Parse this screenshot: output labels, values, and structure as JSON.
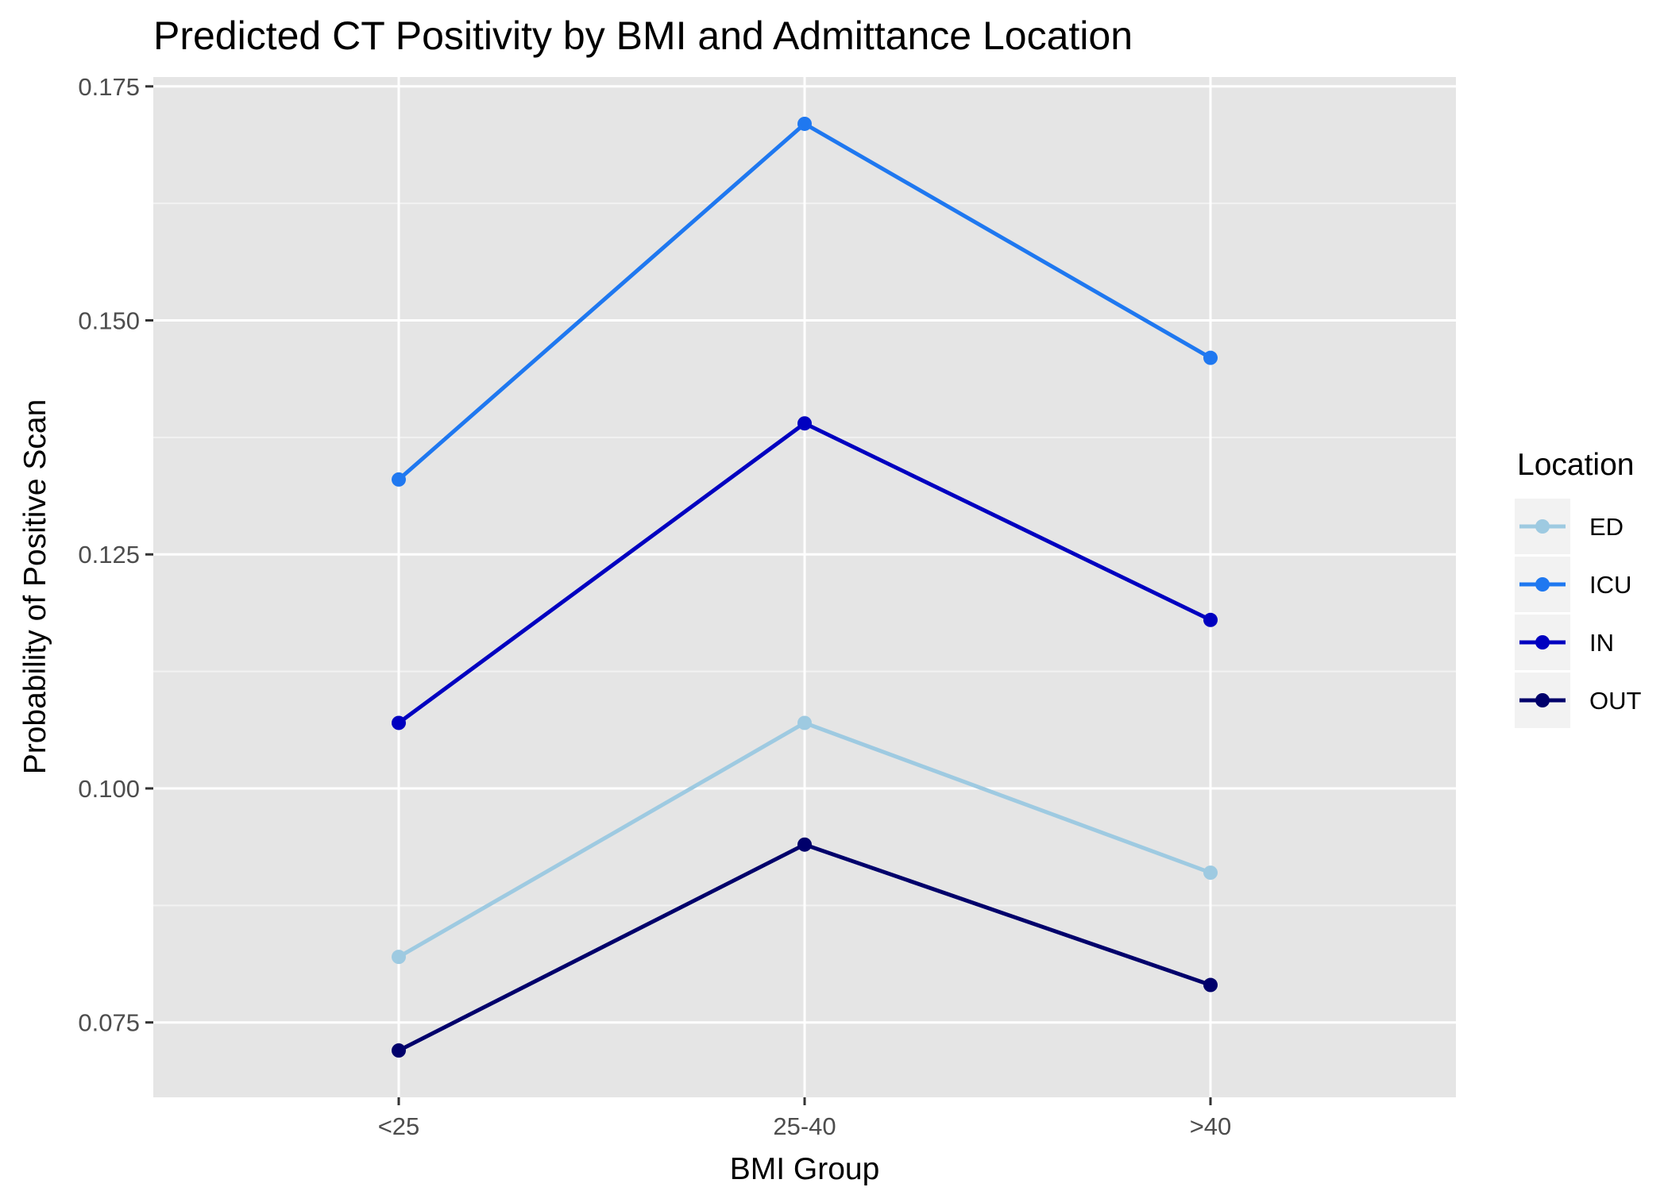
{
  "chart_data": {
    "type": "line",
    "title": "Predicted CT Positivity by BMI and Admittance Location",
    "xlabel": "BMI Group",
    "ylabel": "Probability of Positive Scan",
    "categories": [
      "<25",
      "25-40",
      ">40"
    ],
    "ylim": [
      0.067,
      0.176
    ],
    "yticks": [
      0.075,
      0.1,
      0.125,
      0.15,
      0.175
    ],
    "ytick_labels": [
      "0.075",
      "0.100",
      "0.125",
      "0.150",
      "0.175"
    ],
    "grid": true,
    "legend": {
      "title": "Location",
      "position": "right"
    },
    "series": [
      {
        "name": "ED",
        "color": "#9ecae1",
        "values": [
          0.082,
          0.107,
          0.091
        ]
      },
      {
        "name": "ICU",
        "color": "#1f78f0",
        "values": [
          0.133,
          0.171,
          0.146
        ]
      },
      {
        "name": "IN",
        "color": "#0000c0",
        "values": [
          0.107,
          0.139,
          0.118
        ]
      },
      {
        "name": "OUT",
        "color": "#00006b",
        "values": [
          0.072,
          0.094,
          0.079
        ]
      }
    ]
  }
}
